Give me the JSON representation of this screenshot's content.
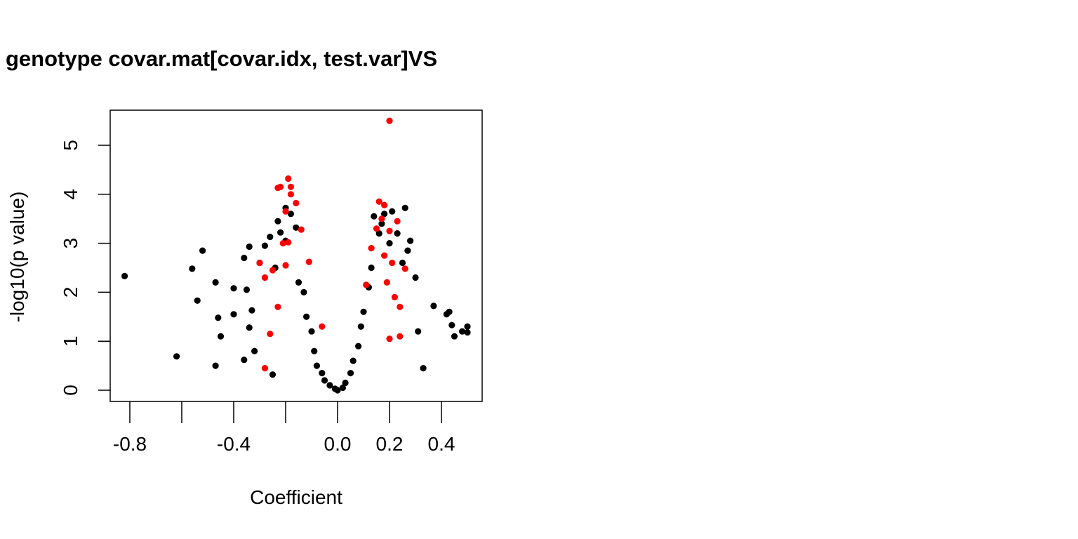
{
  "chart_data": {
    "type": "scatter",
    "title": "genotype covar.mat[covar.idx, test.var]VS",
    "xlabel": "Coefficient",
    "ylabel": "-log10(p value)",
    "xlim": [
      -0.85,
      0.56
    ],
    "ylim": [
      -0.2,
      5.7
    ],
    "x_ticks": [
      -0.8,
      -0.6,
      -0.4,
      -0.2,
      0.0,
      0.2,
      0.4
    ],
    "x_tick_labels": [
      "-0.8",
      "",
      "-0.4",
      "",
      "0.0",
      "0.2",
      "0.4"
    ],
    "y_ticks": [
      0,
      1,
      2,
      3,
      4,
      5
    ],
    "y_tick_labels": [
      "0",
      "1",
      "2",
      "3",
      "4",
      "5"
    ],
    "grid": false,
    "legend": "none",
    "colors": {
      "significant": "#ff0000",
      "other": "#000000"
    },
    "series": [
      {
        "color": "#000000",
        "points": [
          [
            -0.82,
            2.33
          ],
          [
            -0.62,
            0.69
          ],
          [
            -0.56,
            2.48
          ],
          [
            -0.54,
            1.83
          ],
          [
            -0.52,
            2.85
          ],
          [
            -0.47,
            2.2
          ],
          [
            -0.47,
            0.5
          ],
          [
            -0.46,
            1.48
          ],
          [
            -0.45,
            1.1
          ],
          [
            -0.4,
            2.08
          ],
          [
            -0.4,
            1.55
          ],
          [
            -0.36,
            2.7
          ],
          [
            -0.35,
            2.05
          ],
          [
            -0.34,
            2.93
          ],
          [
            -0.34,
            1.28
          ],
          [
            -0.36,
            0.62
          ],
          [
            -0.33,
            1.63
          ],
          [
            -0.32,
            0.8
          ],
          [
            -0.3,
            2.6
          ],
          [
            -0.28,
            2.95
          ],
          [
            -0.26,
            3.13
          ],
          [
            -0.25,
            0.32
          ],
          [
            -0.24,
            2.5
          ],
          [
            -0.23,
            3.45
          ],
          [
            -0.22,
            3.22
          ],
          [
            -0.2,
            3.72
          ],
          [
            -0.2,
            3.05
          ],
          [
            -0.18,
            3.6
          ],
          [
            -0.16,
            3.32
          ],
          [
            -0.15,
            2.2
          ],
          [
            -0.13,
            2.0
          ],
          [
            -0.12,
            1.5
          ],
          [
            -0.1,
            1.2
          ],
          [
            -0.09,
            0.8
          ],
          [
            -0.08,
            0.5
          ],
          [
            -0.06,
            0.35
          ],
          [
            -0.05,
            0.2
          ],
          [
            -0.03,
            0.1
          ],
          [
            -0.01,
            0.03
          ],
          [
            0.0,
            0.0
          ],
          [
            0.02,
            0.05
          ],
          [
            0.03,
            0.15
          ],
          [
            0.05,
            0.35
          ],
          [
            0.06,
            0.6
          ],
          [
            0.08,
            0.9
          ],
          [
            0.09,
            1.3
          ],
          [
            0.1,
            1.6
          ],
          [
            0.12,
            2.1
          ],
          [
            0.13,
            2.5
          ],
          [
            0.14,
            3.55
          ],
          [
            0.16,
            3.2
          ],
          [
            0.17,
            3.4
          ],
          [
            0.18,
            3.6
          ],
          [
            0.2,
            3.0
          ],
          [
            0.21,
            3.65
          ],
          [
            0.23,
            3.2
          ],
          [
            0.25,
            2.6
          ],
          [
            0.26,
            3.72
          ],
          [
            0.27,
            2.85
          ],
          [
            0.28,
            3.05
          ],
          [
            0.3,
            2.3
          ],
          [
            0.31,
            1.2
          ],
          [
            0.33,
            0.45
          ],
          [
            0.37,
            1.72
          ],
          [
            0.42,
            1.55
          ],
          [
            0.43,
            1.6
          ],
          [
            0.44,
            1.33
          ],
          [
            0.45,
            1.1
          ],
          [
            0.48,
            1.2
          ],
          [
            0.5,
            1.3
          ],
          [
            0.5,
            1.18
          ]
        ]
      },
      {
        "color": "#ff0000",
        "points": [
          [
            0.2,
            5.5
          ],
          [
            -0.19,
            4.32
          ],
          [
            -0.23,
            4.13
          ],
          [
            -0.22,
            4.15
          ],
          [
            -0.18,
            4.15
          ],
          [
            -0.18,
            4.0
          ],
          [
            -0.2,
            3.65
          ],
          [
            -0.16,
            3.82
          ],
          [
            -0.14,
            3.28
          ],
          [
            -0.19,
            3.02
          ],
          [
            -0.21,
            3.0
          ],
          [
            -0.25,
            2.45
          ],
          [
            -0.28,
            2.3
          ],
          [
            -0.3,
            2.6
          ],
          [
            -0.23,
            1.7
          ],
          [
            -0.26,
            1.15
          ],
          [
            -0.28,
            0.45
          ],
          [
            -0.2,
            2.55
          ],
          [
            -0.11,
            2.62
          ],
          [
            -0.06,
            1.3
          ],
          [
            0.16,
            3.85
          ],
          [
            0.18,
            3.78
          ],
          [
            0.17,
            3.5
          ],
          [
            0.15,
            3.3
          ],
          [
            0.2,
            3.25
          ],
          [
            0.23,
            3.45
          ],
          [
            0.13,
            2.9
          ],
          [
            0.18,
            2.75
          ],
          [
            0.21,
            2.6
          ],
          [
            0.26,
            2.48
          ],
          [
            0.19,
            2.2
          ],
          [
            0.22,
            1.9
          ],
          [
            0.24,
            1.7
          ],
          [
            0.11,
            2.15
          ],
          [
            0.2,
            1.05
          ],
          [
            0.24,
            1.1
          ]
        ]
      }
    ]
  }
}
